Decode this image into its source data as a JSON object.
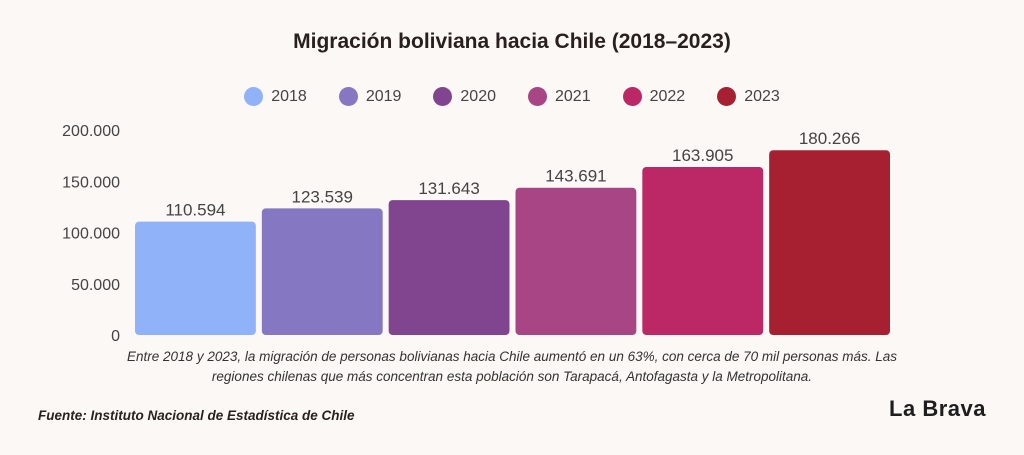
{
  "title": "Migración boliviana hacia Chile (2018–2023)",
  "caption": "Entre 2018 y 2023, la migración de personas bolivianas hacia Chile aumentó en un 63%, con cerca de 70 mil personas más. Las regiones chilenas que más concentran esta población son Tarapacá, Antofagasta y la Metropolitana.",
  "source": "Fuente: Instituto Nacional de Estadística de Chile",
  "brand": "La Brava",
  "chart_data": {
    "type": "bar",
    "title": "Migración boliviana hacia Chile (2018–2023)",
    "categories": [
      "2018",
      "2019",
      "2020",
      "2021",
      "2022",
      "2023"
    ],
    "values": [
      110594,
      123539,
      131643,
      143691,
      163905,
      180266
    ],
    "value_labels": [
      "110.594",
      "123.539",
      "131.643",
      "143.691",
      "163.905",
      "180.266"
    ],
    "colors": [
      "#8fb2f8",
      "#8677c2",
      "#81458f",
      "#a74585",
      "#bb2865",
      "#a72032"
    ],
    "ylim": [
      0,
      200000
    ],
    "yticks": [
      0,
      50000,
      100000,
      150000,
      200000
    ],
    "ytick_labels": [
      "0",
      "50.000",
      "100.000",
      "150.000",
      "200.000"
    ],
    "grid": false,
    "legend_position": "top-center"
  }
}
